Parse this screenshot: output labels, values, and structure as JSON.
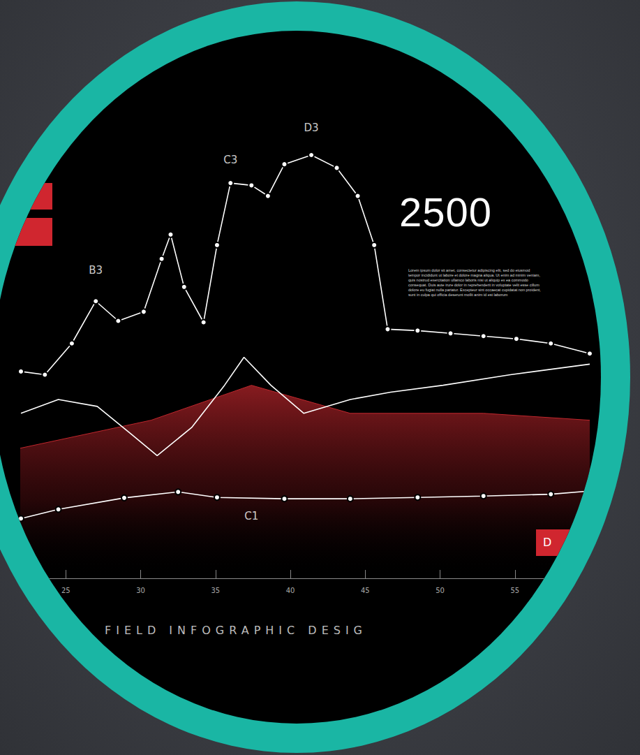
{
  "chart_data": {
    "type": "line",
    "title": "FIELD INFOGRAPHIC DESIG",
    "xlim": [
      22,
      60
    ],
    "xticks": [
      25,
      30,
      35,
      40,
      45,
      50,
      55
    ],
    "ylim": [
      0,
      100
    ],
    "tick_labels": "x",
    "grid": false,
    "series": [
      {
        "type": "area",
        "color": "#c0272d",
        "marker": "none",
        "x": [
          21.8,
          30.7,
          37.4,
          44.0,
          52.9,
          60.0
        ],
        "values": [
          28.2,
          34.4,
          42.0,
          35.9,
          35.9,
          34.4
        ]
      },
      {
        "type": "line",
        "color": "#ffffff",
        "marker": "none",
        "x": [
          22.0,
          24.5,
          27.1,
          29.4,
          31.1,
          33.4,
          35.6,
          36.9,
          38.7,
          40.9,
          44.0,
          46.7,
          50.2,
          54.7,
          60.0
        ],
        "values": [
          35.9,
          38.9,
          37.4,
          31.3,
          26.7,
          32.8,
          42.0,
          48.1,
          42.0,
          35.9,
          38.9,
          40.5,
          42.0,
          44.3,
          46.6
        ]
      },
      {
        "type": "line",
        "color": "#ffffff",
        "marker": "circle",
        "x": [
          22.0,
          23.6,
          25.4,
          27.0,
          28.5,
          30.2,
          31.4,
          32.0,
          32.9,
          34.2,
          35.1,
          36.0,
          37.4,
          38.5,
          39.6,
          41.4,
          43.1,
          44.5,
          45.6,
          46.5,
          48.5,
          50.7,
          52.9,
          55.1,
          57.4,
          60.0
        ],
        "values": [
          45.0,
          44.3,
          51.1,
          60.3,
          56.0,
          58.0,
          69.5,
          74.8,
          63.4,
          55.7,
          72.5,
          86.0,
          85.5,
          83.2,
          90.1,
          92.1,
          89.3,
          83.2,
          72.5,
          54.2,
          53.9,
          53.3,
          52.7,
          52.1,
          51.1,
          48.9
        ]
      },
      {
        "type": "line",
        "color": "#ffffff",
        "marker": "circle",
        "x": [
          22.0,
          24.5,
          28.9,
          32.5,
          35.1,
          39.6,
          44.0,
          48.5,
          52.9,
          57.4,
          60.0
        ],
        "values": [
          13,
          15,
          17.5,
          18.8,
          17.6,
          17.3,
          17.3,
          17.6,
          17.9,
          18.3,
          19
        ]
      }
    ],
    "annotations": [
      {
        "text": "B3",
        "x": 27.0,
        "y": 67
      },
      {
        "text": "C3",
        "x": 36.0,
        "y": 91
      },
      {
        "text": "D3",
        "x": 41.4,
        "y": 98
      },
      {
        "text": "C1",
        "x": 37.4,
        "y": 13.5
      }
    ],
    "highlight": {
      "value": 2500,
      "text": "Lorem ipsum dolor sit amet, consectetur adipiscing elit, sed do eiusmod tempor incididunt ut labore et dolore magna aliqua. Ut enim ad minim veniam, quis nostrud exercitation ullamco laboris nisi ut aliquip ex ea commodo consequat. Duis aute irure dolor in reprehenderit in voluptate velit esse cillum dolore eu fugiat nulla pariatur. Excepteur sint occaecat cupidatat non proident, sunt in culpa qui officia deserunt mollit anim id est laborum"
    },
    "corner_label": "D"
  }
}
